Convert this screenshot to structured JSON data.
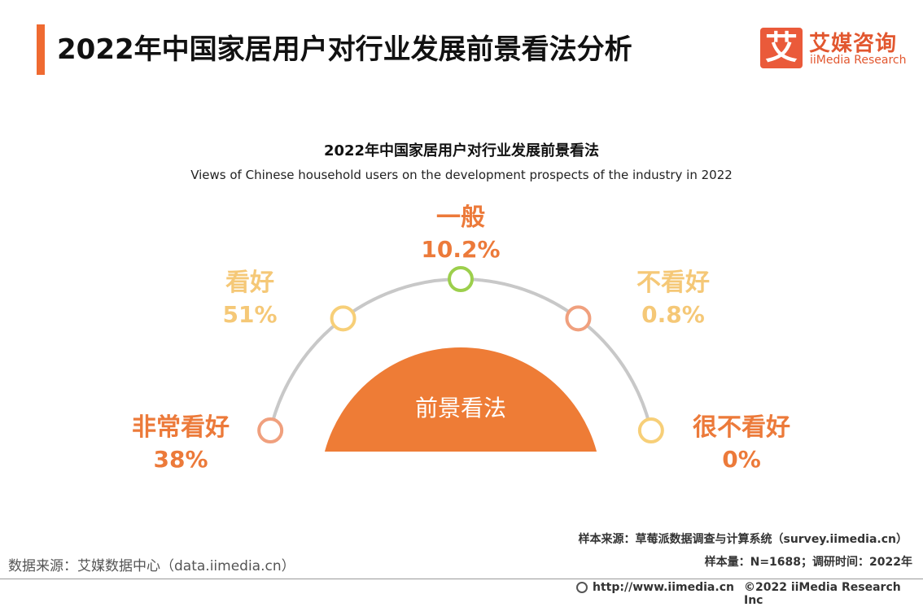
{
  "header": {
    "title": "2022年中国家居用户对行业发展前景看法分析",
    "logo_mark": "艾",
    "logo_cn": "艾媒咨询",
    "logo_en": "iiMedia Research"
  },
  "chart_data": {
    "type": "pie",
    "title": "2022年中国家居用户对行业发展前景看法",
    "subtitle": "Views of Chinese household users on the development prospects of the industry in 2022",
    "center_label": "前景看法",
    "categories": [
      "非常看好",
      "看好",
      "一般",
      "不看好",
      "很不看好"
    ],
    "values": [
      38,
      51,
      10.2,
      0.8,
      0
    ],
    "value_labels": [
      "38%",
      "51%",
      "10.2%",
      "0.8%",
      "0%"
    ],
    "marker_colors": [
      "#f0a07e",
      "#f7cf78",
      "#9ccf4c",
      "#f0a07e",
      "#f7cf78"
    ],
    "label_colors": [
      "#ec7a3a",
      "#f5c877",
      "#ec7a3a",
      "#f5c877",
      "#ec7a3a"
    ],
    "accent": "#ee7c36",
    "arc_color": "#c8c8c8"
  },
  "footer": {
    "sample_source": "样本来源：草莓派数据调查与计算系统（survey.iimedia.cn）",
    "sample_size": "样本量：N=1688；调研时间：2022年",
    "data_source": "数据来源：艾媒数据中心（data.iimedia.cn）",
    "url": "http://www.iimedia.cn",
    "copyright": "©2022  iiMedia Research  Inc"
  }
}
